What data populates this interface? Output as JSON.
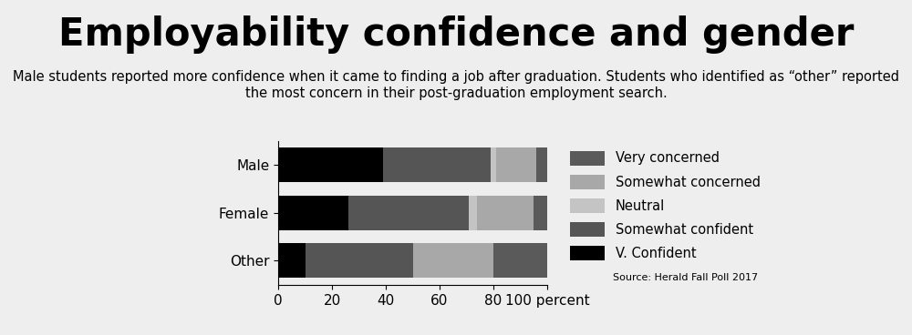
{
  "chart_data": {
    "type": "bar",
    "orientation": "horizontal",
    "stacked": true,
    "title": "Employability confidence and gender",
    "subtitle": "Male students reported more confidence when it came to finding a job after graduation. Students who identified as “other” reported the most concern in their post-graduation employment search.",
    "annotations": [
      "Source: Herald Fall Poll 2017"
    ],
    "categories": [
      "Male",
      "Female",
      "Other"
    ],
    "series": [
      {
        "name": "V. Confident",
        "color": "#000000",
        "values": [
          39,
          26,
          10
        ]
      },
      {
        "name": "Somewhat confident",
        "color": "#555555",
        "values": [
          40,
          45,
          40
        ]
      },
      {
        "name": "Neutral",
        "color": "#c4c4c4",
        "values": [
          2,
          3,
          0
        ]
      },
      {
        "name": "Somewhat concerned",
        "color": "#a8a8a8",
        "values": [
          15,
          21,
          30
        ]
      },
      {
        "name": "Very concerned",
        "color": "#5a5a5a",
        "values": [
          4,
          5,
          20
        ]
      }
    ],
    "xlim": [
      0,
      100
    ],
    "xticks": [
      0,
      20,
      40,
      60,
      80,
      {
        "value": 100,
        "label": "100 percent"
      }
    ],
    "grid": false,
    "legend": "right"
  }
}
